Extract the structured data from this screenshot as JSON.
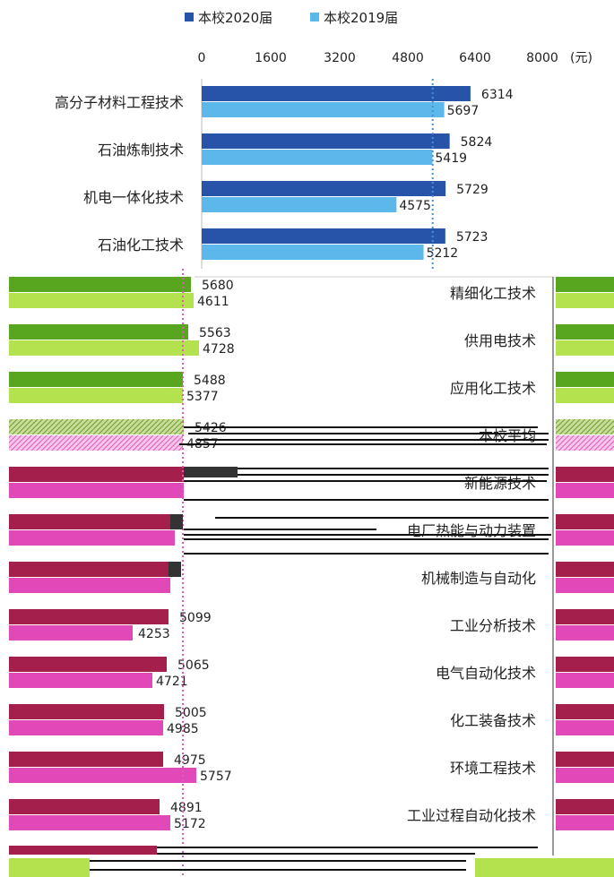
{
  "chart_data": {
    "type": "bar",
    "orientation": "horizontal",
    "legend_position": "top",
    "x_ticks": [
      "0",
      "1600",
      "3200",
      "4800",
      "6400",
      "8000"
    ],
    "x_unit": "(元)",
    "xlim": [
      0,
      8000
    ],
    "reference_line": {
      "value": 5426,
      "style": "dotted"
    },
    "series": [
      {
        "name": "本校2020届"
      },
      {
        "name": "本校2019届"
      }
    ],
    "rows": [
      {
        "category": "高分子材料工程技术",
        "v2020": 6314,
        "v2019": 5697,
        "palette": "blue"
      },
      {
        "category": "石油炼制技术",
        "v2020": 5824,
        "v2019": 5419,
        "palette": "blue"
      },
      {
        "category": "机电一体化技术",
        "v2020": 5729,
        "v2019": 4575,
        "palette": "blue"
      },
      {
        "category": "石油化工技术",
        "v2020": 5723,
        "v2019": 5212,
        "palette": "blue"
      },
      {
        "category": "精细化工技术",
        "v2020": 5680,
        "v2019": 4611,
        "palette": "green"
      },
      {
        "category": "供用电技术",
        "v2020": 5563,
        "v2019": 4728,
        "palette": "green"
      },
      {
        "category": "应用化工技术",
        "v2020": 5488,
        "v2019": 5377,
        "palette": "green"
      },
      {
        "category": "本校平均",
        "v2020": 5426,
        "v2019": 4857,
        "palette": "hatch"
      },
      {
        "category": "新能源技术",
        "v2020": null,
        "v2019": null,
        "palette": "magenta"
      },
      {
        "category": "电厂热能与动力装置",
        "v2020": null,
        "v2019": null,
        "palette": "magenta"
      },
      {
        "category": "机械制造与自动化",
        "v2020": null,
        "v2019": null,
        "palette": "magenta"
      },
      {
        "category": "工业分析技术",
        "v2020": 5099,
        "v2019": 4253,
        "palette": "magenta"
      },
      {
        "category": "电气自动化技术",
        "v2020": 5065,
        "v2019": 4721,
        "palette": "magenta"
      },
      {
        "category": "化工装备技术",
        "v2020": 5005,
        "v2019": 4985,
        "palette": "magenta"
      },
      {
        "category": "环境工程技术",
        "v2020": 4975,
        "v2019": 5757,
        "palette": "magenta"
      },
      {
        "category": "工业过程自动化技术",
        "v2020": 4891,
        "v2019": 5172,
        "palette": "magenta"
      }
    ],
    "colors": {
      "blue": {
        "dark": "#2753a8",
        "light": "#5cb7ea"
      },
      "green": {
        "dark": "#58a51f",
        "light": "#b4e24f"
      },
      "hatch": {
        "dark": "#7fa23a",
        "light": "#e579c9"
      },
      "magenta": {
        "dark": "#a51f4d",
        "light": "#e149b9"
      }
    }
  }
}
